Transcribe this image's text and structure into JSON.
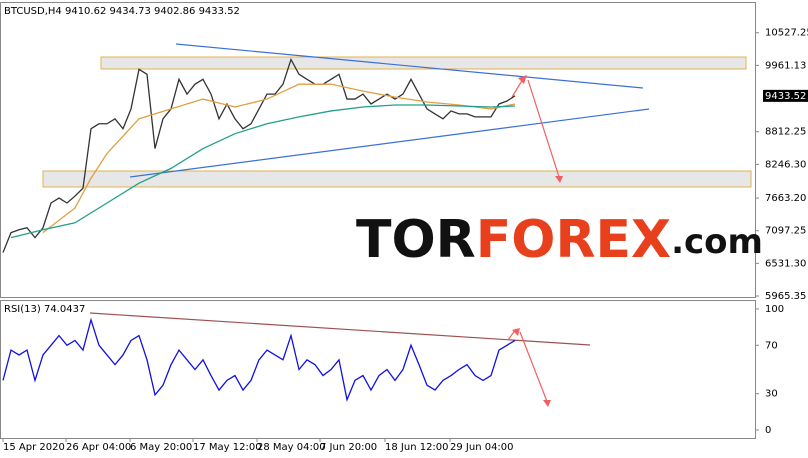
{
  "chart_data": [
    {
      "type": "line",
      "title": "BTCUSD,H4  9410.62 9434.73 9402.86 9433.52",
      "xlim": [
        -3,
        752
      ],
      "ylim": [
        5948,
        11060
      ],
      "yticks": [
        10527.25,
        9961.13,
        8812.25,
        {
          "value": 8246.3,
          "label": "8246.30"
        },
        {
          "value": 7663.2,
          "label": "7663.20"
        },
        7097.25,
        {
          "value": 6531.3,
          "label": "6531.30"
        },
        5965.35
      ],
      "last_price": 9433.52,
      "watermark": [
        "TOR",
        "FOREX",
        ".com"
      ],
      "series": [
        {
          "color": "#333333",
          "x": [
            0,
            8,
            16,
            24,
            32,
            40,
            48,
            56,
            64,
            72,
            80,
            88,
            96,
            104,
            112,
            120,
            128,
            136,
            144,
            152,
            160,
            168,
            176,
            184,
            192,
            200,
            208,
            216,
            224,
            232,
            240,
            248,
            256,
            264,
            272,
            280,
            288,
            296,
            304,
            312,
            320,
            328,
            336,
            344,
            352,
            360,
            368,
            376,
            384,
            392,
            400,
            408,
            416,
            424,
            432,
            440,
            448,
            456,
            464,
            472,
            480,
            488,
            496,
            504,
            512
          ],
          "values": [
            6720,
            7063,
            7114,
            7148,
            6977,
            7148,
            7577,
            7663,
            7577,
            7697,
            7834,
            8864,
            8950,
            8950,
            9035,
            8864,
            9207,
            9893,
            9807,
            8521,
            9035,
            9207,
            9721,
            9464,
            9636,
            9721,
            9464,
            9035,
            9293,
            9035,
            8864,
            8950,
            9207,
            9464,
            9464,
            9636,
            10064,
            9807,
            9721,
            9636,
            9636,
            9721,
            9807,
            9378,
            9378,
            9464,
            9293,
            9378,
            9464,
            9378,
            9464,
            9721,
            9464,
            9207,
            9121,
            9035,
            9172,
            9121,
            9121,
            9070,
            9070,
            9070,
            9293,
            9344,
            9434
          ]
        },
        {
          "color": "#e0a040",
          "x": [
            40,
            72,
            88,
            104,
            136,
            168,
            200,
            232,
            264,
            296,
            328,
            360,
            392,
            424,
            456,
            488,
            512
          ],
          "values": [
            7063,
            7491,
            8006,
            8435,
            9035,
            9207,
            9378,
            9241,
            9378,
            9636,
            9636,
            9515,
            9412,
            9327,
            9275,
            9207,
            9293
          ]
        },
        {
          "color": "#20a088",
          "x": [
            8,
            40,
            72,
            104,
            136,
            168,
            200,
            232,
            264,
            296,
            328,
            360,
            392,
            424,
            456,
            488,
            512
          ],
          "values": [
            6977,
            7114,
            7234,
            7577,
            7920,
            8177,
            8521,
            8778,
            8950,
            9070,
            9172,
            9241,
            9275,
            9275,
            9258,
            9241,
            9258
          ]
        }
      ]
    },
    {
      "type": "line",
      "title": "RSI(13) 74.0437",
      "xlim": [
        -3,
        752
      ],
      "ylim": [
        -6.6,
        107.4
      ],
      "yticks": [
        100,
        70,
        30,
        0
      ],
      "xticks": [
        {
          "value": 0,
          "label": "15 Apr 2020"
        },
        {
          "value": 63,
          "label": "26 Apr 04:00"
        },
        {
          "value": 127,
          "label": "6 May 20:00"
        },
        {
          "value": 190,
          "label": "17 May 12:00"
        },
        {
          "value": 254,
          "label": "28 May 04:00"
        },
        {
          "value": 317,
          "label": "7 Jun 20:00"
        },
        {
          "value": 382,
          "label": "18 Jun 12:00"
        },
        {
          "value": 447,
          "label": "29 Jun 04:00"
        }
      ],
      "series": [
        {
          "color": "#1010e0",
          "x": [
            0,
            8,
            16,
            24,
            32,
            40,
            48,
            56,
            64,
            72,
            80,
            88,
            96,
            104,
            112,
            120,
            128,
            136,
            144,
            152,
            160,
            168,
            176,
            184,
            192,
            200,
            208,
            216,
            224,
            232,
            240,
            248,
            256,
            264,
            272,
            280,
            288,
            296,
            304,
            312,
            320,
            328,
            336,
            344,
            352,
            360,
            368,
            376,
            384,
            392,
            400,
            408,
            416,
            424,
            432,
            440,
            448,
            456,
            464,
            472,
            480,
            488,
            496,
            504,
            512
          ],
          "values": [
            41,
            66,
            62,
            66,
            41,
            62,
            70,
            78,
            70,
            74,
            66,
            91,
            70,
            62,
            54,
            62,
            74,
            78,
            58,
            29,
            37,
            54,
            66,
            58,
            50,
            58,
            45,
            33,
            41,
            45,
            33,
            41,
            58,
            66,
            62,
            58,
            78,
            50,
            58,
            54,
            45,
            50,
            58,
            25,
            41,
            45,
            33,
            45,
            50,
            41,
            50,
            70,
            54,
            37,
            33,
            41,
            45,
            50,
            54,
            45,
            41,
            45,
            66,
            70,
            74.04
          ]
        }
      ]
    }
  ]
}
